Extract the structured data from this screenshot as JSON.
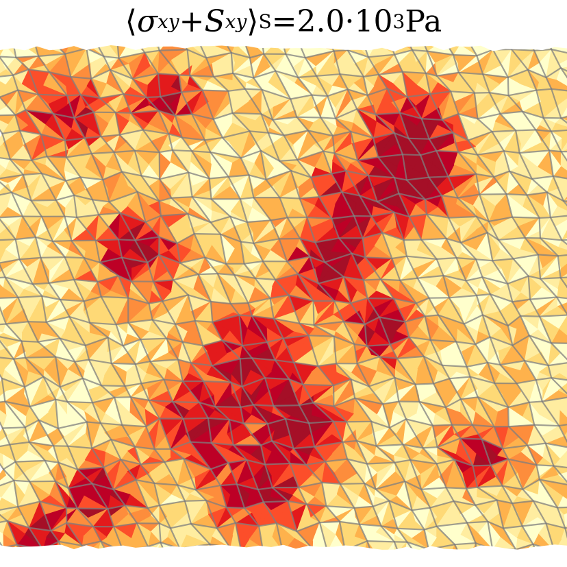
{
  "figure": {
    "title": {
      "langle": "⟨",
      "sigma": "σ",
      "sigma_sub": "xy",
      "plus": " + ",
      "S": "S",
      "S_sub": "xy",
      "rangle": "⟩",
      "avg_sub": "S",
      "equals": " =",
      "mantissa": "2.0",
      "times": " · ",
      "base": "10",
      "exponent": "3",
      "unit": " Pa"
    }
  },
  "colors": {
    "ramp": [
      "#ffffcc",
      "#ffeda0",
      "#fed976",
      "#feb24c",
      "#fd8d3c",
      "#fc4e2a",
      "#e31a1c",
      "#bd0026",
      "#a50f27"
    ],
    "cell_edges": "#7f7f7f",
    "background": "#ffffff"
  }
}
